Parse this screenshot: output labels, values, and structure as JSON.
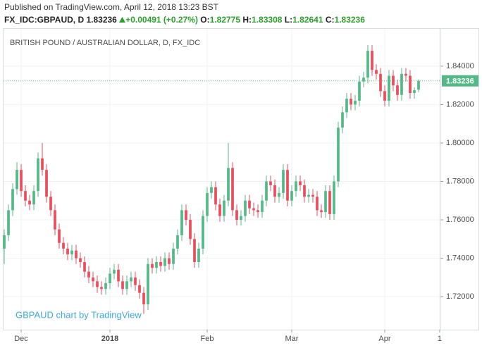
{
  "header": {
    "published": "Published on TradingView.com, April 12, 2018 13:23 BST",
    "symbol": "FX_IDC:GBPAUD, D",
    "price": "1.83236",
    "change": "+0.00491 (+0.27%)",
    "ohlc": [
      {
        "label": "O:",
        "value": "1.82775"
      },
      {
        "label": "H:",
        "value": "1.83308"
      },
      {
        "label": "L:",
        "value": "1.82641"
      },
      {
        "label": "C:",
        "value": "1.83236"
      }
    ]
  },
  "chart_data": {
    "type": "candlestick",
    "title": "BRITISH POUND / AUSTRALIAN DOLLAR, D, FX_IDC",
    "watermark": "GBPAUD chart by TradingView",
    "up_color": "#53b987",
    "down_color": "#eb4d5c",
    "grid": true,
    "last_price": 1.83236,
    "xlim": [
      -0.17,
      103.17
    ],
    "xticks": [
      {
        "value": 4,
        "label": "Dec"
      },
      {
        "value": 25,
        "label": "2018"
      },
      {
        "value": 48,
        "label": "Feb"
      },
      {
        "value": 68,
        "label": "Mar"
      },
      {
        "value": 90,
        "label": "Apr"
      },
      {
        "value": 103,
        "label": "1"
      }
    ],
    "ylim": [
      1.7039,
      1.8572
    ],
    "yticks": [
      {
        "value": 1.72,
        "label": "1.72000"
      },
      {
        "value": 1.74,
        "label": "1.74000"
      },
      {
        "value": 1.76,
        "label": "1.76000"
      },
      {
        "value": 1.78,
        "label": "1.78000"
      },
      {
        "value": 1.8,
        "label": "1.80000"
      },
      {
        "value": 1.82,
        "label": "1.82000"
      },
      {
        "value": 1.84,
        "label": "1.84000"
      }
    ],
    "open": [
      1.745,
      1.752,
      1.765,
      1.776,
      1.786,
      1.775,
      1.77,
      1.768,
      1.775,
      1.792,
      1.786,
      1.772,
      1.765,
      1.755,
      1.748,
      1.745,
      1.742,
      1.744,
      1.74,
      1.738,
      1.733,
      1.73,
      1.728,
      1.725,
      1.724,
      1.727,
      1.732,
      1.734,
      1.728,
      1.724,
      1.728,
      1.73,
      1.726,
      1.722,
      1.716,
      1.737,
      1.735,
      1.738,
      1.736,
      1.74,
      1.737,
      1.745,
      1.752,
      1.765,
      1.76,
      1.75,
      1.738,
      1.745,
      1.762,
      1.774,
      1.777,
      1.768,
      1.762,
      1.77,
      1.787,
      1.765,
      1.76,
      1.762,
      1.77,
      1.766,
      1.765,
      1.764,
      1.77,
      1.78,
      1.778,
      1.772,
      1.774,
      1.786,
      1.77,
      1.775,
      1.78,
      1.778,
      1.772,
      1.773,
      1.772,
      1.765,
      1.764,
      1.775,
      1.763,
      1.78,
      1.808,
      1.816,
      1.823,
      1.82,
      1.822,
      1.832,
      1.834,
      1.848,
      1.838,
      1.836,
      1.827,
      1.822,
      1.835,
      1.83,
      1.825,
      1.836,
      1.835,
      1.826,
      1.82775
    ],
    "high": [
      1.755,
      1.768,
      1.779,
      1.79,
      1.789,
      1.778,
      1.773,
      1.778,
      1.795,
      1.8,
      1.789,
      1.775,
      1.768,
      1.758,
      1.751,
      1.748,
      1.747,
      1.747,
      1.743,
      1.741,
      1.736,
      1.733,
      1.731,
      1.728,
      1.73,
      1.735,
      1.737,
      1.737,
      1.731,
      1.731,
      1.733,
      1.733,
      1.729,
      1.725,
      1.74,
      1.74,
      1.741,
      1.741,
      1.743,
      1.743,
      1.748,
      1.755,
      1.768,
      1.768,
      1.763,
      1.753,
      1.748,
      1.765,
      1.777,
      1.78,
      1.78,
      1.771,
      1.773,
      1.8,
      1.79,
      1.768,
      1.765,
      1.773,
      1.773,
      1.769,
      1.768,
      1.773,
      1.783,
      1.783,
      1.781,
      1.777,
      1.789,
      1.789,
      1.778,
      1.783,
      1.783,
      1.781,
      1.776,
      1.776,
      1.775,
      1.768,
      1.778,
      1.778,
      1.783,
      1.811,
      1.819,
      1.826,
      1.826,
      1.825,
      1.835,
      1.837,
      1.851,
      1.851,
      1.841,
      1.839,
      1.83,
      1.838,
      1.838,
      1.833,
      1.839,
      1.839,
      1.838,
      1.829,
      1.83308
    ],
    "low": [
      1.737,
      1.749,
      1.762,
      1.773,
      1.772,
      1.767,
      1.765,
      1.765,
      1.772,
      1.783,
      1.769,
      1.762,
      1.752,
      1.745,
      1.742,
      1.739,
      1.739,
      1.737,
      1.735,
      1.73,
      1.727,
      1.725,
      1.722,
      1.721,
      1.721,
      1.724,
      1.729,
      1.725,
      1.721,
      1.721,
      1.725,
      1.723,
      1.719,
      1.711,
      1.713,
      1.732,
      1.732,
      1.733,
      1.733,
      1.734,
      1.734,
      1.742,
      1.749,
      1.757,
      1.747,
      1.735,
      1.735,
      1.742,
      1.759,
      1.771,
      1.765,
      1.759,
      1.759,
      1.767,
      1.762,
      1.757,
      1.757,
      1.759,
      1.763,
      1.762,
      1.761,
      1.761,
      1.767,
      1.775,
      1.769,
      1.769,
      1.771,
      1.767,
      1.767,
      1.772,
      1.775,
      1.769,
      1.769,
      1.769,
      1.762,
      1.761,
      1.761,
      1.76,
      1.76,
      1.777,
      1.805,
      1.813,
      1.817,
      1.817,
      1.819,
      1.829,
      1.831,
      1.835,
      1.833,
      1.824,
      1.819,
      1.819,
      1.827,
      1.822,
      1.822,
      1.832,
      1.823,
      1.823,
      1.82641
    ],
    "close": [
      1.752,
      1.765,
      1.776,
      1.786,
      1.775,
      1.77,
      1.768,
      1.775,
      1.792,
      1.786,
      1.772,
      1.765,
      1.755,
      1.748,
      1.745,
      1.742,
      1.744,
      1.74,
      1.738,
      1.733,
      1.73,
      1.728,
      1.725,
      1.724,
      1.727,
      1.732,
      1.734,
      1.728,
      1.724,
      1.728,
      1.73,
      1.726,
      1.722,
      1.716,
      1.737,
      1.735,
      1.738,
      1.736,
      1.74,
      1.737,
      1.745,
      1.752,
      1.765,
      1.76,
      1.75,
      1.738,
      1.745,
      1.762,
      1.774,
      1.777,
      1.768,
      1.762,
      1.77,
      1.787,
      1.765,
      1.76,
      1.762,
      1.77,
      1.766,
      1.765,
      1.764,
      1.77,
      1.78,
      1.778,
      1.772,
      1.774,
      1.786,
      1.77,
      1.775,
      1.78,
      1.778,
      1.772,
      1.773,
      1.772,
      1.765,
      1.764,
      1.775,
      1.763,
      1.78,
      1.808,
      1.816,
      1.823,
      1.82,
      1.822,
      1.832,
      1.834,
      1.848,
      1.838,
      1.836,
      1.827,
      1.822,
      1.835,
      1.83,
      1.825,
      1.836,
      1.835,
      1.826,
      1.82745,
      1.83236
    ]
  }
}
